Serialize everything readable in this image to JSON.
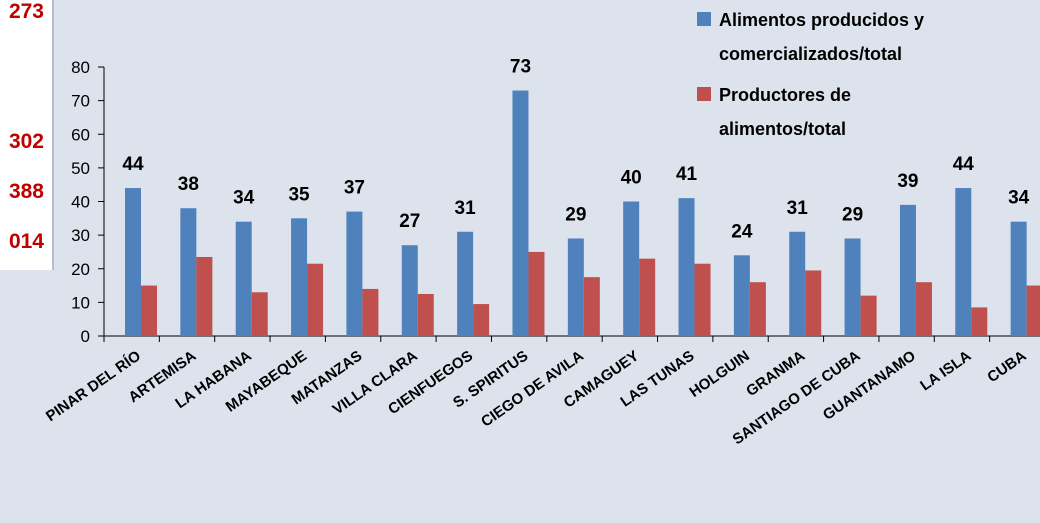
{
  "side_values": [
    "273",
    "302",
    "388",
    "014"
  ],
  "colors": {
    "series1": "#4f81bd",
    "series2": "#c0504d",
    "text_red": "#c00000"
  },
  "chart_data": {
    "type": "bar",
    "title": "",
    "xlabel": "",
    "ylabel": "",
    "ylim": [
      0,
      80
    ],
    "yticks": [
      "0",
      "10",
      "20",
      "30",
      "40",
      "50",
      "60",
      "70",
      "80"
    ],
    "grid": false,
    "legend_position": "top-right",
    "categories": [
      "PINAR DEL RÍO",
      "ARTEMISA",
      "LA HABANA",
      "MAYABEQUE",
      "MATANZAS",
      "VILLA CLARA",
      "CIENFUEGOS",
      "S. SPIRITUS",
      "CIEGO DE AVILA",
      "CAMAGUEY",
      "LAS TUNAS",
      "HOLGUIN",
      "GRANMA",
      "SANTIAGO DE CUBA",
      "GUANTANAMO",
      "LA ISLA",
      "CUBA"
    ],
    "series": [
      {
        "name": "Alimentos producidos y comercializados/total",
        "legend_lines": [
          "Alimentos producidos y",
          "comercializados/total"
        ],
        "values": [
          44,
          38,
          34,
          35,
          37,
          27,
          31,
          73,
          29,
          40,
          41,
          24,
          31,
          29,
          39,
          44,
          34
        ],
        "data_labels": [
          "44",
          "38",
          "34",
          "35",
          "37",
          "27",
          "31",
          "73",
          "29",
          "40",
          "41",
          "24",
          "31",
          "29",
          "39",
          "44",
          "34"
        ]
      },
      {
        "name": "Productores de alimentos/total",
        "legend_lines": [
          "Productores de",
          "alimentos/total"
        ],
        "values": [
          15,
          23.5,
          13,
          21.5,
          14,
          12.5,
          9.5,
          25,
          17.5,
          23,
          21.5,
          16,
          19.5,
          12,
          16,
          8.5,
          15
        ]
      }
    ]
  }
}
